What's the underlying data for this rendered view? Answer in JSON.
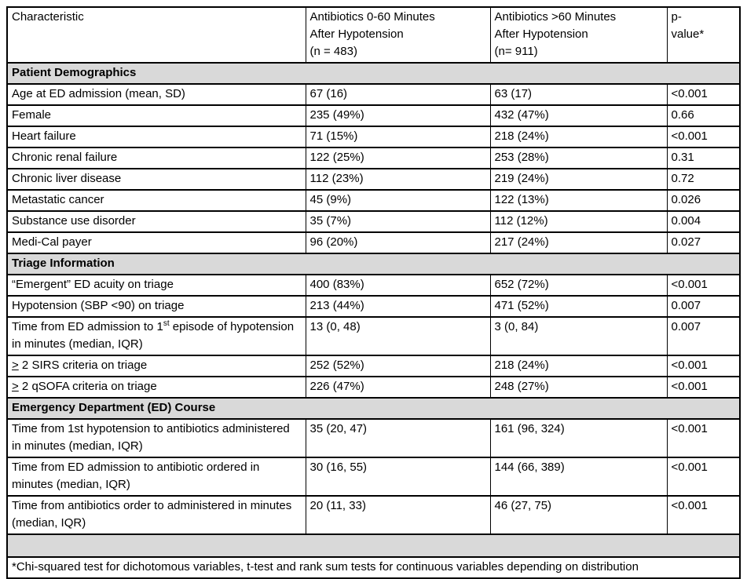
{
  "table": {
    "colors": {
      "section_background": "#d9d9d9",
      "border": "#000000",
      "text": "#000000",
      "page_background": "#ffffff"
    },
    "header": {
      "characteristic": "Characteristic",
      "group1": "Antibiotics 0-60 Minutes\nAfter Hypotension\n(n = 483)",
      "group2": "Antibiotics >60 Minutes\nAfter Hypotension\n(n= 911)",
      "pvalue": "p-\nvalue*"
    },
    "rows": [
      {
        "type": "section",
        "label": "Patient Demographics"
      },
      {
        "type": "data",
        "label": "Age at ED admission (mean, SD)",
        "group1": "67 (16)",
        "group2": "63 (17)",
        "pvalue": "<0.001"
      },
      {
        "type": "data",
        "label": "Female",
        "group1": "235 (49%)",
        "group2": "432 (47%)",
        "pvalue": "0.66"
      },
      {
        "type": "data",
        "label": "Heart failure",
        "group1": "71 (15%)",
        "group2": "218 (24%)",
        "pvalue": "<0.001"
      },
      {
        "type": "data",
        "label": "Chronic renal failure",
        "group1": "122 (25%)",
        "group2": "253 (28%)",
        "pvalue": "0.31"
      },
      {
        "type": "data",
        "label": "Chronic liver disease",
        "group1": "112 (23%)",
        "group2": "219 (24%)",
        "pvalue": "0.72"
      },
      {
        "type": "data",
        "label": "Metastatic cancer",
        "group1": "45 (9%)",
        "group2": "122 (13%)",
        "pvalue": "0.026"
      },
      {
        "type": "data",
        "label": "Substance use disorder",
        "group1": "35 (7%)",
        "group2": "112 (12%)",
        "pvalue": "0.004"
      },
      {
        "type": "data",
        "label": "Medi-Cal payer",
        "group1": "96 (20%)",
        "group2": "217 (24%)",
        "pvalue": "0.027"
      },
      {
        "type": "section",
        "label": "Triage Information"
      },
      {
        "type": "data",
        "label": "“Emergent” ED acuity on triage",
        "group1": "400 (83%)",
        "group2": "652 (72%)",
        "pvalue": "<0.001"
      },
      {
        "type": "data",
        "label": "Hypotension (SBP <90) on triage",
        "group1": "213 (44%)",
        "group2": "471 (52%)",
        "pvalue": "0.007"
      },
      {
        "type": "data",
        "label": "Time from ED admission to 1",
        "sup": "st",
        "label_after": " episode of hypotension in minutes (median, IQR)",
        "group1": "13 (0, 48)",
        "group2": "3 (0, 84)",
        "pvalue": "0.007"
      },
      {
        "type": "data",
        "underline_prefix": ">",
        "label": " 2 SIRS criteria on triage",
        "group1": "252 (52%)",
        "group2": "218 (24%)",
        "pvalue": "<0.001"
      },
      {
        "type": "data",
        "underline_prefix": ">",
        "label": " 2 qSOFA criteria on triage",
        "group1": "226 (47%)",
        "group2": "248 (27%)",
        "pvalue": "<0.001"
      },
      {
        "type": "section",
        "label": "Emergency Department (ED) Course"
      },
      {
        "type": "data",
        "label": "Time from 1st hypotension to antibiotics administered in minutes (median, IQR)",
        "group1": "35 (20, 47)",
        "group2": "161 (96, 324)",
        "pvalue": "<0.001"
      },
      {
        "type": "data",
        "label": "Time from ED admission to antibiotic ordered in minutes (median, IQR)",
        "group1": "30 (16, 55)",
        "group2": "144 (66, 389)",
        "pvalue": "<0.001"
      },
      {
        "type": "data",
        "label": "Time from antibiotics order to administered in minutes (median, IQR)",
        "group1": "20 (11, 33)",
        "group2": "46 (27, 75)",
        "pvalue": "<0.001"
      },
      {
        "type": "empty"
      },
      {
        "type": "footnote",
        "label": "*Chi-squared test for dichotomous variables, t-test and rank sum tests for continuous variables depending on distribution"
      }
    ]
  }
}
